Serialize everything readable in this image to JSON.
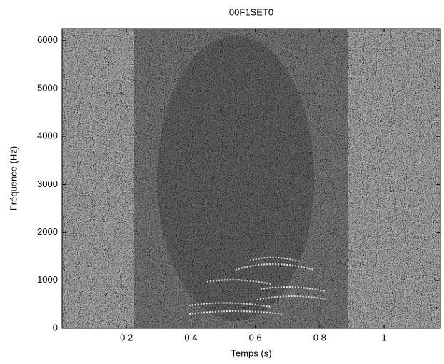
{
  "chart_data": {
    "type": "spectrogram",
    "title": "00F1SET0",
    "xlabel": "Temps (s)",
    "ylabel": "Fréquence (Hz)",
    "xlim": [
      0,
      1.175
    ],
    "ylim": [
      0,
      6250
    ],
    "xticks": [
      {
        "value": 0.2,
        "label": "0 2"
      },
      {
        "value": 0.4,
        "label": "0 4"
      },
      {
        "value": 0.6,
        "label": "0 6"
      },
      {
        "value": 0.8,
        "label": "0 8"
      },
      1
    ],
    "yticks": [
      0,
      1000,
      2000,
      3000,
      4000,
      5000,
      6000
    ]
  }
}
